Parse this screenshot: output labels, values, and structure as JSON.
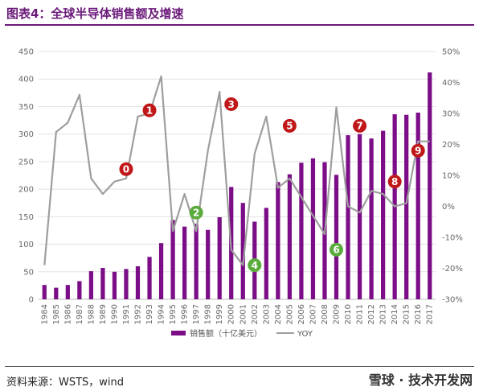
{
  "header": {
    "title": "图表4：全球半导体销售额及增速"
  },
  "footer": {
    "source": "资料来源：WSTS，wind",
    "watermark": "雪球 · 技术开发网"
  },
  "colors": {
    "bar": "#7b0d87",
    "line": "#9e9e9e",
    "title": "#6b1a7a",
    "marker_red": "#c01818",
    "marker_green": "#5aab3c"
  },
  "chart_data": {
    "type": "bar",
    "categories": [
      "1984",
      "1985",
      "1986",
      "1987",
      "1988",
      "1989",
      "1990",
      "1991",
      "1992",
      "1993",
      "1994",
      "1995",
      "1996",
      "1997",
      "1998",
      "1999",
      "2000",
      "2001",
      "2002",
      "2003",
      "2004",
      "2005",
      "2006",
      "2007",
      "2008",
      "2009",
      "2010",
      "2011",
      "2012",
      "2013",
      "2014",
      "2015",
      "2016",
      "2017"
    ],
    "series": [
      {
        "name": "销售额（十亿美元）",
        "type": "bar",
        "axis": "left",
        "values": [
          26,
          21,
          26,
          33,
          51,
          57,
          50,
          55,
          60,
          77,
          102,
          144,
          132,
          137,
          126,
          149,
          204,
          175,
          141,
          166,
          213,
          227,
          248,
          256,
          249,
          226,
          298,
          300,
          292,
          306,
          336,
          335,
          339,
          412
        ]
      },
      {
        "name": "YOY",
        "type": "line",
        "axis": "right",
        "values": [
          -19,
          24,
          27,
          36,
          9,
          4,
          8,
          9,
          29,
          30,
          42,
          -8,
          4,
          -8,
          18,
          37,
          -14,
          -19,
          17,
          29,
          6,
          9,
          3,
          -3,
          -9,
          32,
          0,
          -2,
          5,
          4,
          0,
          1,
          21,
          21
        ]
      }
    ],
    "y_left": {
      "lim": [
        0,
        450
      ],
      "ticks": [
        "0",
        "50",
        "100",
        "150",
        "200",
        "250",
        "300",
        "350",
        "400",
        "450"
      ]
    },
    "y_right": {
      "lim": [
        -30,
        50
      ],
      "ticks": [
        "-30%",
        "-20%",
        "-10%",
        "0%",
        "10%",
        "20%",
        "30%",
        "40%",
        "50%"
      ]
    },
    "annotations": [
      {
        "label": "0",
        "year": "1991",
        "yoy": 12,
        "color": "red"
      },
      {
        "label": "1",
        "year": "1993",
        "yoy": 31,
        "color": "red"
      },
      {
        "label": "2",
        "year": "1997",
        "yoy": -2,
        "color": "green"
      },
      {
        "label": "3",
        "year": "2000",
        "yoy": 33,
        "color": "red"
      },
      {
        "label": "4",
        "year": "2002",
        "yoy": -19,
        "color": "green"
      },
      {
        "label": "5",
        "year": "2005",
        "yoy": 26,
        "color": "red"
      },
      {
        "label": "6",
        "year": "2009",
        "yoy": -14,
        "color": "green"
      },
      {
        "label": "7",
        "year": "2011",
        "yoy": 26,
        "color": "red"
      },
      {
        "label": "8",
        "year": "2014",
        "yoy": 8,
        "color": "red"
      },
      {
        "label": "9",
        "year": "2016",
        "yoy": 18,
        "color": "red"
      }
    ],
    "grid": true,
    "legend": "bottom"
  }
}
